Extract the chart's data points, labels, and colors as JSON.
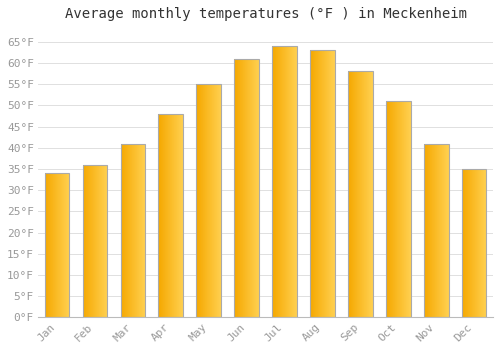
{
  "title": "Average monthly temperatures (°F ) in Meckenheim",
  "months": [
    "Jan",
    "Feb",
    "Mar",
    "Apr",
    "May",
    "Jun",
    "Jul",
    "Aug",
    "Sep",
    "Oct",
    "Nov",
    "Dec"
  ],
  "values": [
    34,
    36,
    41,
    48,
    55,
    61,
    64,
    63,
    58,
    51,
    41,
    35
  ],
  "bar_color_left": "#F5A800",
  "bar_color_right": "#FFD050",
  "bar_border_color": "#AAAAAA",
  "ylim": [
    0,
    68
  ],
  "yticks": [
    0,
    5,
    10,
    15,
    20,
    25,
    30,
    35,
    40,
    45,
    50,
    55,
    60,
    65
  ],
  "ytick_labels": [
    "0°F",
    "5°F",
    "10°F",
    "15°F",
    "20°F",
    "25°F",
    "30°F",
    "35°F",
    "40°F",
    "45°F",
    "50°F",
    "55°F",
    "60°F",
    "65°F"
  ],
  "bg_color": "#ffffff",
  "grid_color": "#e0e0e0",
  "title_fontsize": 10,
  "tick_fontsize": 8,
  "bar_width": 0.65,
  "figsize": [
    5.0,
    3.5
  ],
  "dpi": 100
}
